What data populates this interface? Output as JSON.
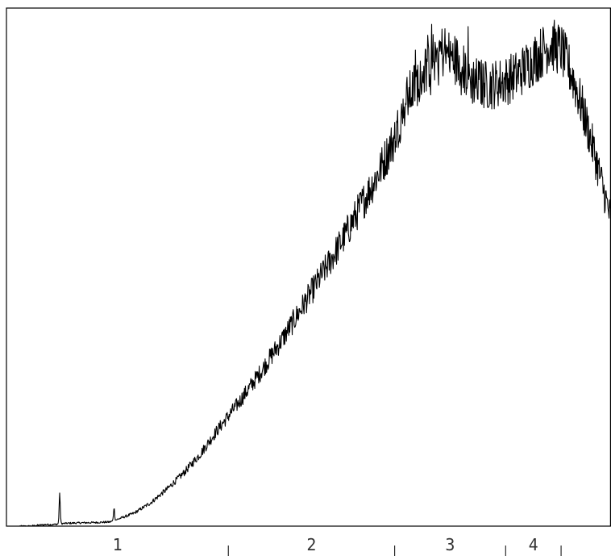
{
  "chart_data": {
    "type": "line",
    "title": "",
    "xlabel": "",
    "ylabel": "",
    "grid": false,
    "legend": "none",
    "line_color": "#000000",
    "axes_color": "#000000",
    "region_boundaries": [
      0.0,
      2.0,
      3.5,
      4.5,
      5.0,
      5.45
    ],
    "region_labels": [
      "1",
      "2",
      "3",
      "4"
    ],
    "xlim": [
      0,
      5.45
    ],
    "ylim": [
      0,
      100
    ],
    "series": [
      {
        "x": [
          0,
          0.2,
          0.35,
          0.42,
          0.5,
          0.6,
          0.8,
          0.93,
          0.96,
          1.0,
          1.15,
          1.3,
          1.45,
          1.6,
          1.75,
          1.9,
          2.1,
          2.3,
          2.5,
          2.7,
          2.9,
          3.05,
          3.2,
          3.35,
          3.5,
          3.6,
          3.75,
          3.9,
          4.05,
          4.2,
          4.35,
          4.5,
          4.6,
          4.7,
          4.8,
          4.9,
          5.0,
          5.1,
          5.2,
          5.3,
          5.45
        ],
        "y": [
          0,
          0,
          0.3,
          0.3,
          0.5,
          0.6,
          0.7,
          0.8,
          1,
          1.3,
          2.5,
          4.5,
          7.2,
          10.3,
          14,
          18.5,
          24,
          30,
          36.5,
          43.5,
          50.5,
          56,
          62,
          68,
          75,
          82,
          87.5,
          92,
          90,
          86,
          85,
          86,
          87,
          89,
          91,
          93,
          92,
          87,
          80,
          72,
          59
        ],
        "peaks": [
          {
            "x": 0.48,
            "y": 5.8
          },
          {
            "x": 0.97,
            "y": 2.5
          }
        ]
      }
    ]
  }
}
